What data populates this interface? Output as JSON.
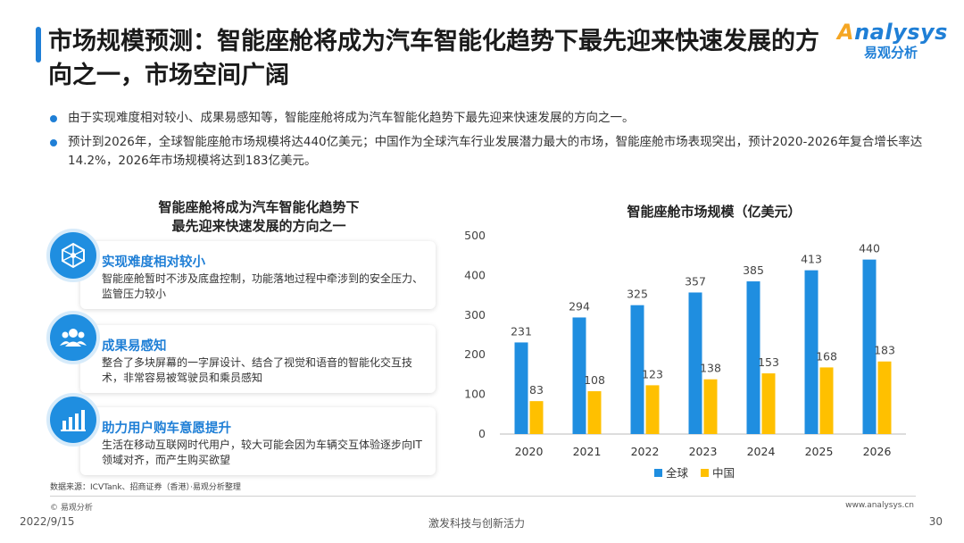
{
  "header": {
    "title": "市场规模预测：智能座舱将成为汽车智能化趋势下最先迎来快速发展的方向之一，市场空间广阔",
    "logo_text": "nalysys",
    "logo_initial": "A",
    "logo_cn": "易观分析"
  },
  "bullets": [
    "由于实现难度相对较小、成果易感知等，智能座舱将成为汽车智能化趋势下最先迎来快速发展的方向之一。",
    "预计到2026年，全球智能座舱市场规模将达440亿美元；中国作为全球汽车行业发展潜力最大的市场，智能座舱市场表现突出，预计2020-2026年复合增长率达14.2%，2026年市场规模将达到183亿美元。"
  ],
  "left_panel": {
    "title_line1": "智能座舱将成为汽车智能化趋势下",
    "title_line2": "最先迎来快速发展的方向之一",
    "cards": [
      {
        "title": "实现难度相对较小",
        "desc": "智能座舱暂时不涉及底盘控制，功能落地过程中牵涉到的安全压力、监管压力较小",
        "icon": "network-icon"
      },
      {
        "title": "成果易感知",
        "desc": "整合了多块屏幕的一字屏设计、结合了视觉和语音的智能化交互技术，非常容易被驾驶员和乘员感知",
        "icon": "users-icon"
      },
      {
        "title": "助力用户购车意愿提升",
        "desc": "生活在移动互联网时代用户，较大可能会因为车辆交互体验逐步向IT领域对齐，而产生购买欲望",
        "icon": "bar-chart-icon"
      }
    ]
  },
  "chart_data": {
    "type": "bar",
    "title": "智能座舱市场规模（亿美元）",
    "categories": [
      "2020",
      "2021",
      "2022",
      "2023",
      "2024",
      "2025",
      "2026"
    ],
    "series": [
      {
        "name": "全球",
        "values": [
          231,
          294,
          325,
          357,
          385,
          413,
          440
        ],
        "color": "#1f8ee0"
      },
      {
        "name": "中国",
        "values": [
          83,
          108,
          123,
          138,
          153,
          168,
          183
        ],
        "color": "#ffc000"
      }
    ],
    "yticks": [
      "0",
      "100",
      "200",
      "300",
      "400",
      "500"
    ],
    "ylim": [
      0,
      500
    ],
    "legend": "bottom",
    "grid": false
  },
  "footer": {
    "source": "数据来源：ICVTank、招商证券（香港）·易观分析整理",
    "copyright": "© 易观分析",
    "date": "2022/9/15",
    "slogan": "激发科技与创新活力",
    "site": "www.analysys.cn",
    "page": "30"
  }
}
